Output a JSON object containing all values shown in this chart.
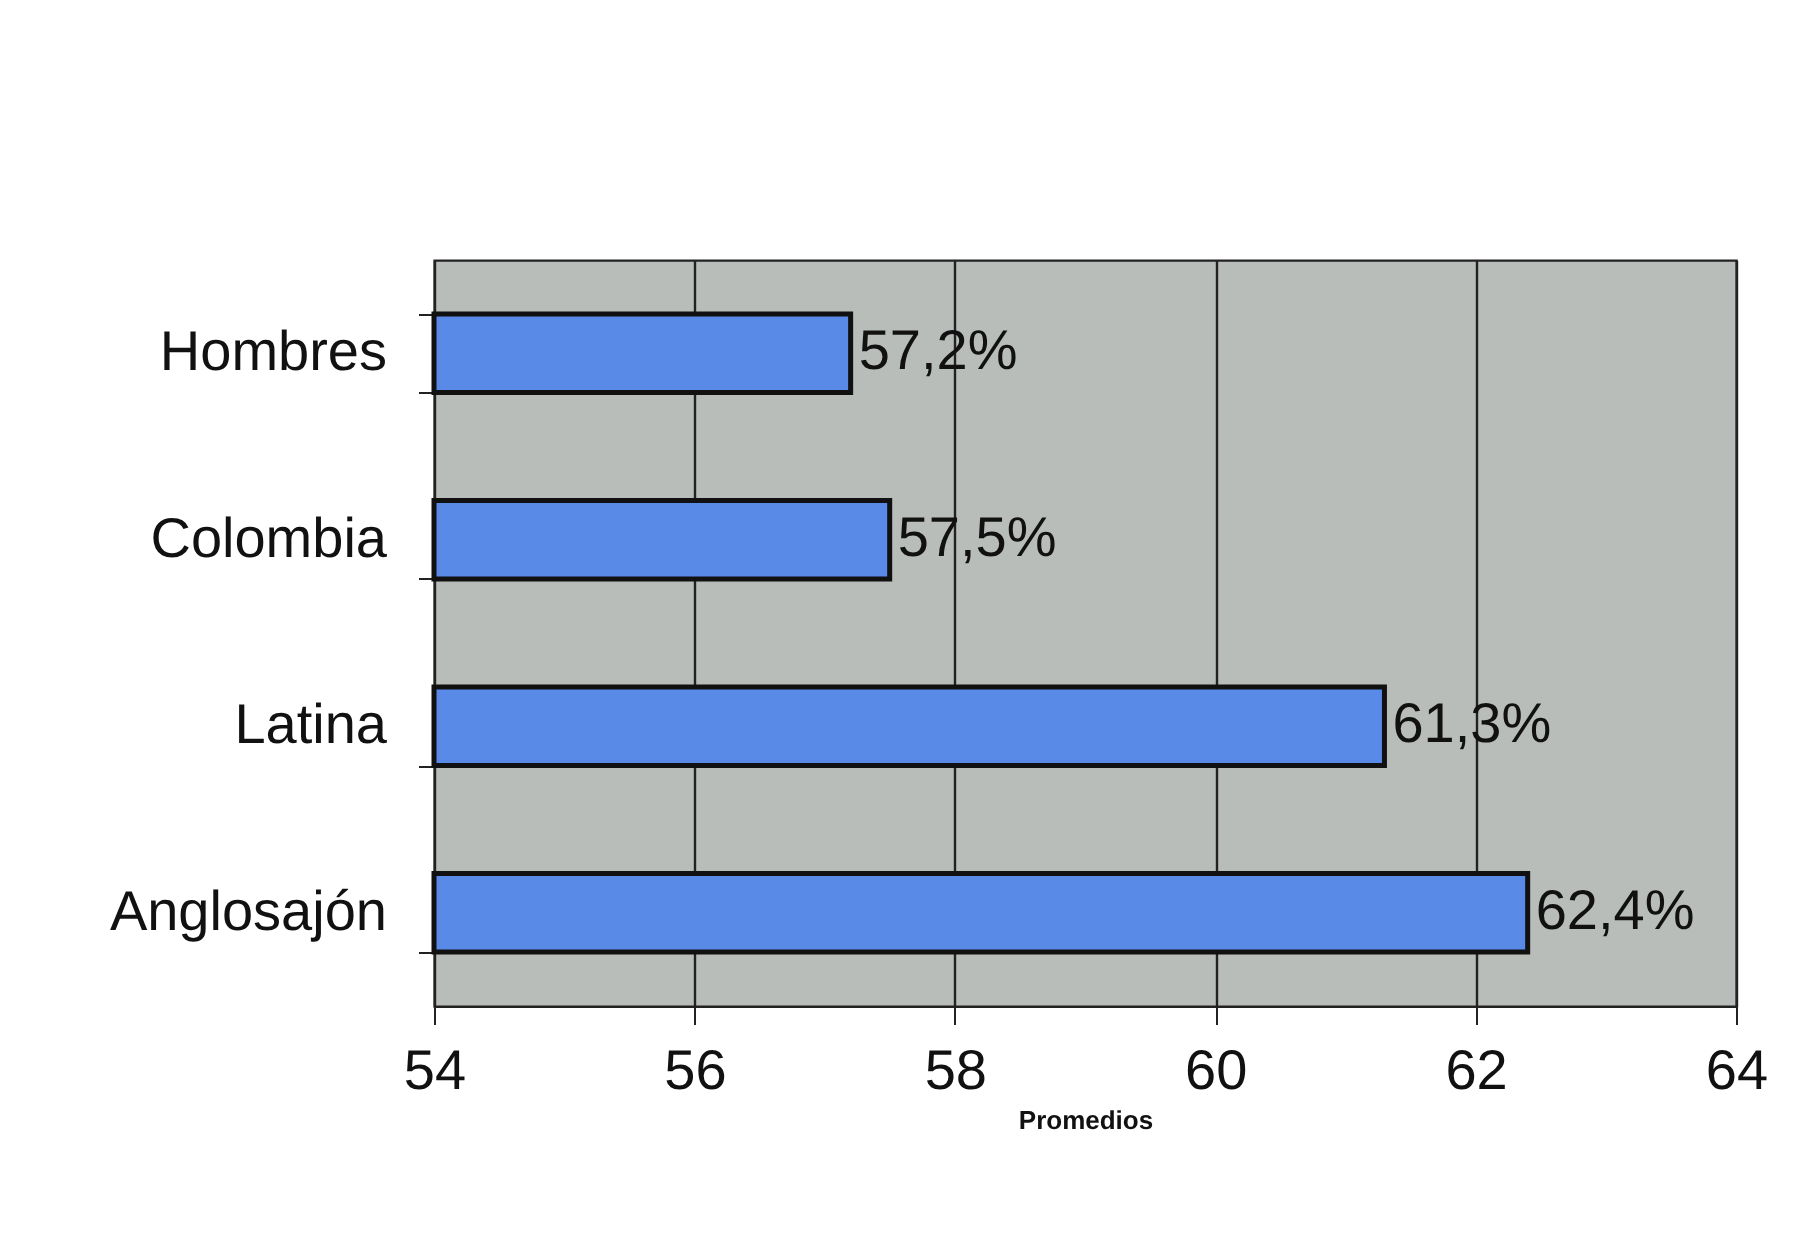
{
  "chart_data": {
    "type": "bar",
    "orientation": "horizontal",
    "xlabel": "Promedios",
    "categories": [
      "Hombres",
      "Colombia",
      "Latina",
      "Anglosajón"
    ],
    "values": [
      57.2,
      57.5,
      61.3,
      62.4
    ],
    "value_labels": [
      "57,2%",
      "57,5%",
      "61,3%",
      "62,4%"
    ],
    "color": "#5a8ae8",
    "xlim": [
      54,
      64
    ],
    "xticks": [
      54,
      56,
      58,
      60,
      62,
      64
    ],
    "grid": "x"
  }
}
